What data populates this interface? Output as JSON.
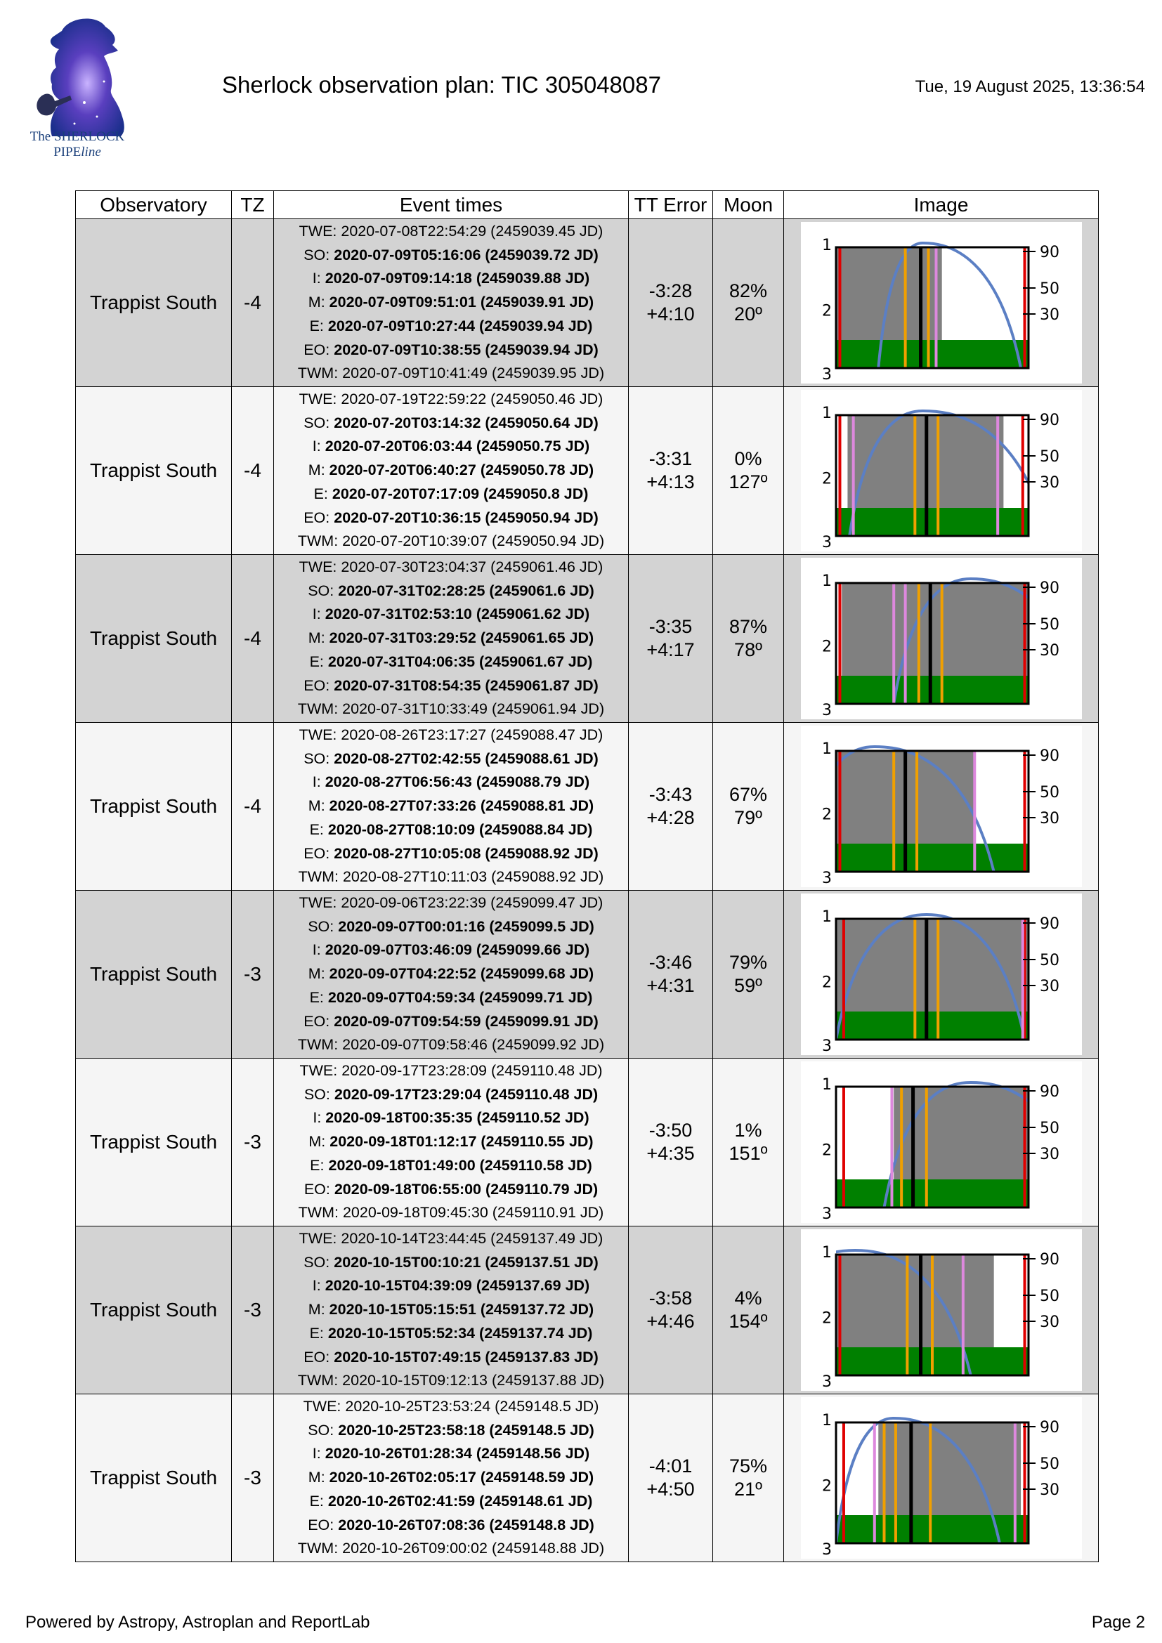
{
  "header": {
    "title": "Sherlock observation plan: TIC 305048087",
    "timestamp": "Tue, 19 August 2025, 13:36:54",
    "logo_line1": "The SHERLOCK",
    "logo_line2_a": "PIPE",
    "logo_line2_b": "line"
  },
  "columns": [
    "Observatory",
    "TZ",
    "Event times",
    "TT Error",
    "Moon",
    "Image"
  ],
  "rows": [
    {
      "observatory": "Trappist South",
      "tz": "-4",
      "events": [
        {
          "label": "TWE:",
          "value": "2020-07-08T22:54:29 (2459039.45 JD)",
          "bold": false
        },
        {
          "label": "SO:",
          "value": "2020-07-09T05:16:06 (2459039.72 JD)",
          "bold": true
        },
        {
          "label": "I:",
          "value": "2020-07-09T09:14:18 (2459039.88 JD)",
          "bold": true
        },
        {
          "label": "M:",
          "value": "2020-07-09T09:51:01 (2459039.91 JD)",
          "bold": true
        },
        {
          "label": "E:",
          "value": "2020-07-09T10:27:44 (2459039.94 JD)",
          "bold": true
        },
        {
          "label": "EO:",
          "value": "2020-07-09T10:38:55 (2459039.94 JD)",
          "bold": true
        },
        {
          "label": "TWM:",
          "value": "2020-07-09T10:41:49 (2459039.95 JD)",
          "bold": false
        }
      ],
      "tt_error_minus": "-3:28",
      "tt_error_plus": "+4:10",
      "moon_pct": "82%",
      "moon_deg": "20º",
      "plot": {
        "grey": [
          0,
          0.55
        ],
        "red": [
          0.02,
          0.98
        ],
        "orange": [
          0.36,
          0.48
        ],
        "black": [
          0.44
        ],
        "violet": [
          0.52
        ],
        "arc": {
          "start": 0.22,
          "peak": 0.45,
          "end": 0.96
        }
      }
    },
    {
      "observatory": "Trappist South",
      "tz": "-4",
      "events": [
        {
          "label": "TWE:",
          "value": "2020-07-19T22:59:22 (2459050.46 JD)",
          "bold": false
        },
        {
          "label": "SO:",
          "value": "2020-07-20T03:14:32 (2459050.64 JD)",
          "bold": true
        },
        {
          "label": "I:",
          "value": "2020-07-20T06:03:44 (2459050.75 JD)",
          "bold": true
        },
        {
          "label": "M:",
          "value": "2020-07-20T06:40:27 (2459050.78 JD)",
          "bold": true
        },
        {
          "label": "E:",
          "value": "2020-07-20T07:17:09 (2459050.8 JD)",
          "bold": true
        },
        {
          "label": "EO:",
          "value": "2020-07-20T10:36:15 (2459050.94 JD)",
          "bold": true
        },
        {
          "label": "TWM:",
          "value": "2020-07-20T10:39:07 (2459050.94 JD)",
          "bold": false
        }
      ],
      "tt_error_minus": "-3:31",
      "tt_error_plus": "+4:13",
      "moon_pct": "0%",
      "moon_deg": "127º",
      "plot": {
        "grey": [
          0.06,
          0.87
        ],
        "red": [
          0.02,
          0.97
        ],
        "orange": [
          0.41,
          0.53
        ],
        "black": [
          0.47
        ],
        "violet": [
          0.09,
          0.84
        ],
        "arc": {
          "start": 0.07,
          "peak": 0.45,
          "end": 1.1
        }
      }
    },
    {
      "observatory": "Trappist South",
      "tz": "-4",
      "events": [
        {
          "label": "TWE:",
          "value": "2020-07-30T23:04:37 (2459061.46 JD)",
          "bold": false
        },
        {
          "label": "SO:",
          "value": "2020-07-31T02:28:25 (2459061.6 JD)",
          "bold": true
        },
        {
          "label": "I:",
          "value": "2020-07-31T02:53:10 (2459061.62 JD)",
          "bold": true
        },
        {
          "label": "M:",
          "value": "2020-07-31T03:29:52 (2459061.65 JD)",
          "bold": true
        },
        {
          "label": "E:",
          "value": "2020-07-31T04:06:35 (2459061.67 JD)",
          "bold": true
        },
        {
          "label": "EO:",
          "value": "2020-07-31T08:54:35 (2459061.87 JD)",
          "bold": true
        },
        {
          "label": "TWM:",
          "value": "2020-07-31T10:33:49 (2459061.94 JD)",
          "bold": false
        }
      ],
      "tt_error_minus": "-3:35",
      "tt_error_plus": "+4:17",
      "moon_pct": "87%",
      "moon_deg": "78º",
      "plot": {
        "grey": [
          0.03,
          1.0
        ],
        "red": [
          0.02,
          0.98
        ],
        "orange": [
          0.43,
          0.55
        ],
        "black": [
          0.49
        ],
        "violet": [
          0.3,
          0.36
        ],
        "arc": {
          "start": 0.3,
          "peak": 0.7,
          "end": 1.3
        }
      }
    },
    {
      "observatory": "Trappist South",
      "tz": "-4",
      "events": [
        {
          "label": "TWE:",
          "value": "2020-08-26T23:17:27 (2459088.47 JD)",
          "bold": false
        },
        {
          "label": "SO:",
          "value": "2020-08-27T02:42:55 (2459088.61 JD)",
          "bold": true
        },
        {
          "label": "I:",
          "value": "2020-08-27T06:56:43 (2459088.79 JD)",
          "bold": true
        },
        {
          "label": "M:",
          "value": "2020-08-27T07:33:26 (2459088.81 JD)",
          "bold": true
        },
        {
          "label": "E:",
          "value": "2020-08-27T08:10:09 (2459088.84 JD)",
          "bold": true
        },
        {
          "label": "EO:",
          "value": "2020-08-27T10:05:08 (2459088.92 JD)",
          "bold": true
        },
        {
          "label": "TWM:",
          "value": "2020-08-27T10:11:03 (2459088.92 JD)",
          "bold": false
        }
      ],
      "tt_error_minus": "-3:43",
      "tt_error_plus": "+4:28",
      "moon_pct": "67%",
      "moon_deg": "79º",
      "plot": {
        "grey": [
          0.0,
          0.72
        ],
        "red": [
          0.02,
          0.98
        ],
        "orange": [
          0.3,
          0.42
        ],
        "black": [
          0.36
        ],
        "violet": [
          0.72
        ],
        "arc": {
          "start": -0.2,
          "peak": 0.2,
          "end": 0.82
        }
      }
    },
    {
      "observatory": "Trappist South",
      "tz": "-3",
      "events": [
        {
          "label": "TWE:",
          "value": "2020-09-06T23:22:39 (2459099.47 JD)",
          "bold": false
        },
        {
          "label": "SO:",
          "value": "2020-09-07T00:01:16 (2459099.5 JD)",
          "bold": true
        },
        {
          "label": "I:",
          "value": "2020-09-07T03:46:09 (2459099.66 JD)",
          "bold": true
        },
        {
          "label": "M:",
          "value": "2020-09-07T04:22:52 (2459099.68 JD)",
          "bold": true
        },
        {
          "label": "E:",
          "value": "2020-09-07T04:59:34 (2459099.71 JD)",
          "bold": true
        },
        {
          "label": "EO:",
          "value": "2020-09-07T09:54:59 (2459099.91 JD)",
          "bold": true
        },
        {
          "label": "TWM:",
          "value": "2020-09-07T09:58:46 (2459099.92 JD)",
          "bold": false
        }
      ],
      "tt_error_minus": "-3:46",
      "tt_error_plus": "+4:31",
      "moon_pct": "79%",
      "moon_deg": "59º",
      "plot": {
        "grey": [
          0.0,
          1.0
        ],
        "red": [
          0.04,
          0.98
        ],
        "orange": [
          0.41,
          0.53
        ],
        "black": [
          0.47
        ],
        "violet": [
          0.97
        ],
        "arc": {
          "start": 0.0,
          "peak": 0.47,
          "end": 0.98
        }
      }
    },
    {
      "observatory": "Trappist South",
      "tz": "-3",
      "events": [
        {
          "label": "TWE:",
          "value": "2020-09-17T23:28:09 (2459110.48 JD)",
          "bold": false
        },
        {
          "label": "SO:",
          "value": "2020-09-17T23:29:04 (2459110.48 JD)",
          "bold": true
        },
        {
          "label": "I:",
          "value": "2020-09-18T00:35:35 (2459110.52 JD)",
          "bold": true
        },
        {
          "label": "M:",
          "value": "2020-09-18T01:12:17 (2459110.55 JD)",
          "bold": true
        },
        {
          "label": "E:",
          "value": "2020-09-18T01:49:00 (2459110.58 JD)",
          "bold": true
        },
        {
          "label": "EO:",
          "value": "2020-09-18T06:55:00 (2459110.79 JD)",
          "bold": true
        },
        {
          "label": "TWM:",
          "value": "2020-09-18T09:45:30 (2459110.91 JD)",
          "bold": false
        }
      ],
      "tt_error_minus": "-3:50",
      "tt_error_plus": "+4:35",
      "moon_pct": "1%",
      "moon_deg": "151º",
      "plot": {
        "grey": [
          0.3,
          1.0
        ],
        "red": [
          0.04,
          0.98
        ],
        "orange": [
          0.34,
          0.47
        ],
        "black": [
          0.4
        ],
        "violet": [
          0.29
        ],
        "arc": {
          "start": 0.25,
          "peak": 0.7,
          "end": 1.3
        }
      }
    },
    {
      "observatory": "Trappist South",
      "tz": "-3",
      "events": [
        {
          "label": "TWE:",
          "value": "2020-10-14T23:44:45 (2459137.49 JD)",
          "bold": false
        },
        {
          "label": "SO:",
          "value": "2020-10-15T00:10:21 (2459137.51 JD)",
          "bold": true
        },
        {
          "label": "I:",
          "value": "2020-10-15T04:39:09 (2459137.69 JD)",
          "bold": true
        },
        {
          "label": "M:",
          "value": "2020-10-15T05:15:51 (2459137.72 JD)",
          "bold": true
        },
        {
          "label": "E:",
          "value": "2020-10-15T05:52:34 (2459137.74 JD)",
          "bold": true
        },
        {
          "label": "EO:",
          "value": "2020-10-15T07:49:15 (2459137.83 JD)",
          "bold": true
        },
        {
          "label": "TWM:",
          "value": "2020-10-15T09:12:13 (2459137.88 JD)",
          "bold": false
        }
      ],
      "tt_error_minus": "-3:58",
      "tt_error_plus": "+4:46",
      "moon_pct": "4%",
      "moon_deg": "154º",
      "plot": {
        "grey": [
          0.0,
          0.82
        ],
        "red": [
          0.02,
          0.98
        ],
        "orange": [
          0.37,
          0.5
        ],
        "black": [
          0.44
        ],
        "violet": [
          0.66
        ],
        "arc": {
          "start": -0.5,
          "peak": 0.1,
          "end": 0.7
        }
      }
    },
    {
      "observatory": "Trappist South",
      "tz": "-3",
      "events": [
        {
          "label": "TWE:",
          "value": "2020-10-25T23:53:24 (2459148.5 JD)",
          "bold": false
        },
        {
          "label": "SO:",
          "value": "2020-10-25T23:58:18 (2459148.5 JD)",
          "bold": true
        },
        {
          "label": "I:",
          "value": "2020-10-26T01:28:34 (2459148.56 JD)",
          "bold": true
        },
        {
          "label": "M:",
          "value": "2020-10-26T02:05:17 (2459148.59 JD)",
          "bold": true
        },
        {
          "label": "E:",
          "value": "2020-10-26T02:41:59 (2459148.61 JD)",
          "bold": true
        },
        {
          "label": "EO:",
          "value": "2020-10-26T07:08:36 (2459148.8 JD)",
          "bold": true
        },
        {
          "label": "TWM:",
          "value": "2020-10-26T09:00:02 (2459148.88 JD)",
          "bold": false
        }
      ],
      "tt_error_minus": "-4:01",
      "tt_error_plus": "+4:50",
      "moon_pct": "75%",
      "moon_deg": "21º",
      "plot": {
        "grey": [
          0.22,
          0.96
        ],
        "red": [
          0.04,
          0.98
        ],
        "orange": [
          0.25,
          0.31,
          0.49
        ],
        "black": [
          0.39
        ],
        "violet": [
          0.2,
          0.93
        ],
        "arc": {
          "start": 0.0,
          "peak": 0.3,
          "end": 0.85
        }
      }
    }
  ],
  "plot_axis": {
    "left_ticks": [
      "1",
      "2",
      "3"
    ],
    "right_ticks": [
      "90",
      "50",
      "30"
    ]
  },
  "colors": {
    "grey": "#808080",
    "green": "#008000",
    "red": "#e00000",
    "orange": "#f0a000",
    "violet": "#dd88dd",
    "arc": "#5b7fc4"
  },
  "footer": {
    "left": "Powered by Astropy, Astroplan and ReportLab",
    "right": "Page 2"
  }
}
